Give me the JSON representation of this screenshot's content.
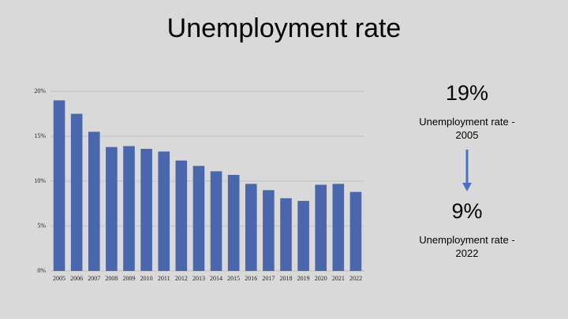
{
  "chart_data": {
    "type": "bar",
    "title": "Unemployment rate",
    "categories": [
      "2005",
      "2006",
      "2007",
      "2008",
      "2009",
      "2010",
      "2011",
      "2012",
      "2013",
      "2014",
      "2015",
      "2016",
      "2017",
      "2018",
      "2019",
      "2020",
      "2021",
      "2022"
    ],
    "values": [
      19,
      17.5,
      15.5,
      13.8,
      13.9,
      13.6,
      13.3,
      12.3,
      11.7,
      11.1,
      10.7,
      9.7,
      9.0,
      8.1,
      7.8,
      9.6,
      9.7,
      8.8
    ],
    "color": "#4a66ad",
    "ylim": [
      0,
      20
    ],
    "yticks": [
      {
        "value": 0,
        "label": "0%"
      },
      {
        "value": 5,
        "label": "5%"
      },
      {
        "value": 10,
        "label": "10%"
      },
      {
        "value": 15,
        "label": "15%"
      },
      {
        "value": 20,
        "label": "20%"
      }
    ],
    "grid": true,
    "annotations": [
      {
        "value": "19%",
        "label": "Unemployment rate - 2005"
      },
      {
        "value": "9%",
        "label": "Unemployment rate - 2022"
      }
    ]
  }
}
